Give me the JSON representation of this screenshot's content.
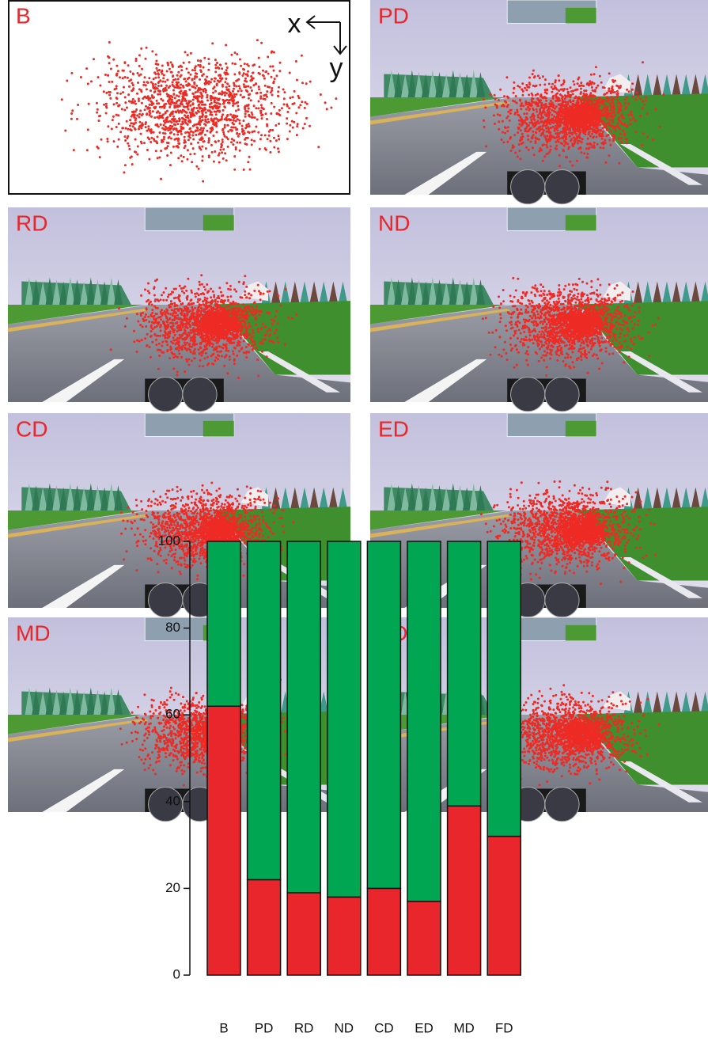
{
  "panels": [
    {
      "label": "B"
    },
    {
      "label": "PD"
    },
    {
      "label": "RD"
    },
    {
      "label": "ND"
    },
    {
      "label": "CD"
    },
    {
      "label": "ED"
    },
    {
      "label": "MD"
    },
    {
      "label": "FD"
    }
  ],
  "axis_labels": {
    "x": "x",
    "y": "y"
  },
  "chart_data": {
    "type": "bar",
    "stacked": true,
    "categories": [
      "B",
      "PD",
      "RD",
      "ND",
      "CD",
      "ED",
      "MD",
      "FD"
    ],
    "series": [
      {
        "color": "#e8262b",
        "values": [
          62,
          22,
          19,
          18,
          20,
          17,
          39,
          32
        ]
      },
      {
        "color": "#00a651",
        "values": [
          38,
          78,
          81,
          82,
          80,
          83,
          61,
          68
        ]
      }
    ],
    "ylim": [
      0,
      100
    ],
    "yticks": [
      0,
      20,
      40,
      60,
      80,
      100
    ]
  }
}
